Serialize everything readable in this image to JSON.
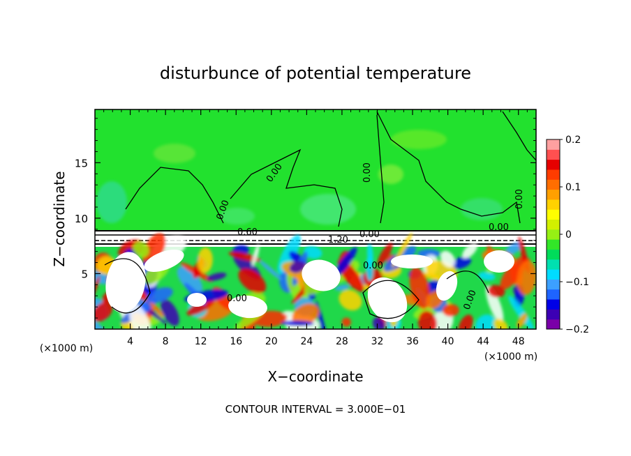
{
  "chart_data": {
    "type": "heatmap",
    "title": "disturbunce of potential temperature",
    "xlabel": "X−coordinate",
    "ylabel": "Z−coordinate",
    "x_unit_label": "(×1000 m)",
    "z_unit_label": "(×1000 m)",
    "x_ticks": [
      4,
      8,
      12,
      16,
      20,
      24,
      28,
      32,
      36,
      40,
      44,
      48
    ],
    "x_tick_labels": [
      "4",
      "8",
      "12",
      "16",
      "20",
      "24",
      "28",
      "32",
      "36",
      "40",
      "44",
      "48"
    ],
    "xlim": [
      0,
      50
    ],
    "z_ticks": [
      5,
      10,
      15
    ],
    "z_tick_labels": [
      "5",
      "10",
      "15"
    ],
    "zlim": [
      0,
      19.8
    ],
    "colorbar": {
      "ticks": [
        0.2,
        0.1,
        0,
        -0.1,
        -0.2
      ],
      "tick_labels": [
        "0.2",
        "0.1",
        "0",
        "−0.1",
        "−0.2"
      ],
      "range": [
        -0.2,
        0.2
      ],
      "colors": [
        "#7a00a8",
        "#3c00b4",
        "#0000e6",
        "#1e64ff",
        "#3ca0ff",
        "#00dcff",
        "#00e0b0",
        "#00dc5a",
        "#32e628",
        "#96f014",
        "#d2f000",
        "#ffff00",
        "#ffd200",
        "#ffa000",
        "#ff6e00",
        "#ff3c00",
        "#e60000",
        "#ff5050",
        "#ffa0a0"
      ]
    },
    "contour_labels": [
      "0.60",
      "1.20",
      "0.00",
      "0.00",
      "0.00",
      "0.00",
      "0.00",
      "0.00",
      "0.00",
      "0.00",
      "0.00"
    ],
    "footer": "CONTOUR INTERVAL = 3.000E−01",
    "grid": false,
    "legend": "colorbar right"
  }
}
